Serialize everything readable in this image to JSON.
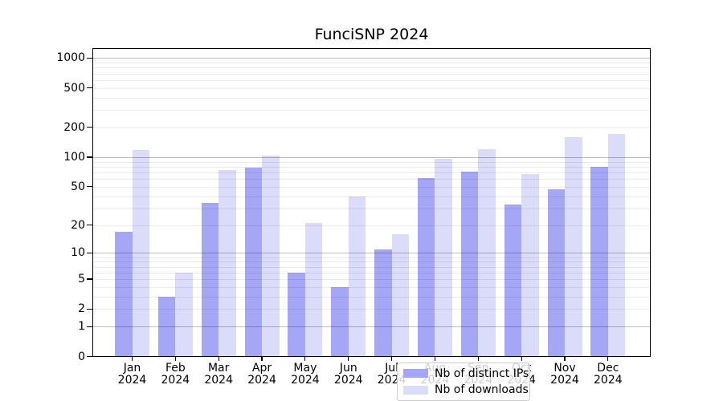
{
  "title": "FunciSNP 2024",
  "chart_data": {
    "type": "bar",
    "title": "FunciSNP 2024",
    "categories": [
      "Jan 2024",
      "Feb 2024",
      "Mar 2024",
      "Apr 2024",
      "May 2024",
      "Jun 2024",
      "Jul 2024",
      "Aug 2024",
      "Sep 2024",
      "Oct 2024",
      "Nov 2024",
      "Dec 2024"
    ],
    "series": [
      {
        "name": "Nb of distinct IPs",
        "color": "#a6a6f6",
        "values": [
          17,
          3,
          34,
          78,
          6,
          4,
          11,
          61,
          71,
          33,
          47,
          80
        ]
      },
      {
        "name": "Nb of downloads",
        "color": "#dbdbfa",
        "values": [
          118,
          6,
          74,
          104,
          21,
          40,
          16,
          96,
          121,
          67,
          161,
          172
        ]
      }
    ],
    "y_scale": "log1p",
    "y_ticks": [
      0,
      1,
      2,
      5,
      10,
      20,
      50,
      100,
      200,
      500,
      1000
    ],
    "ylim": [
      0,
      1300
    ],
    "xlabel": "",
    "ylabel": "",
    "grid": "both",
    "gridlines_over_bars": true,
    "legend_position": "lower center"
  },
  "colors": {
    "background": "#ffffff",
    "axis": "#000000",
    "major_grid": "rgba(0,0,0,0.26)",
    "minor_grid": "rgba(0,0,0,0.08)",
    "legend_border": "#cccccc",
    "legend_background": "rgba(255,255,255,0.8)"
  }
}
